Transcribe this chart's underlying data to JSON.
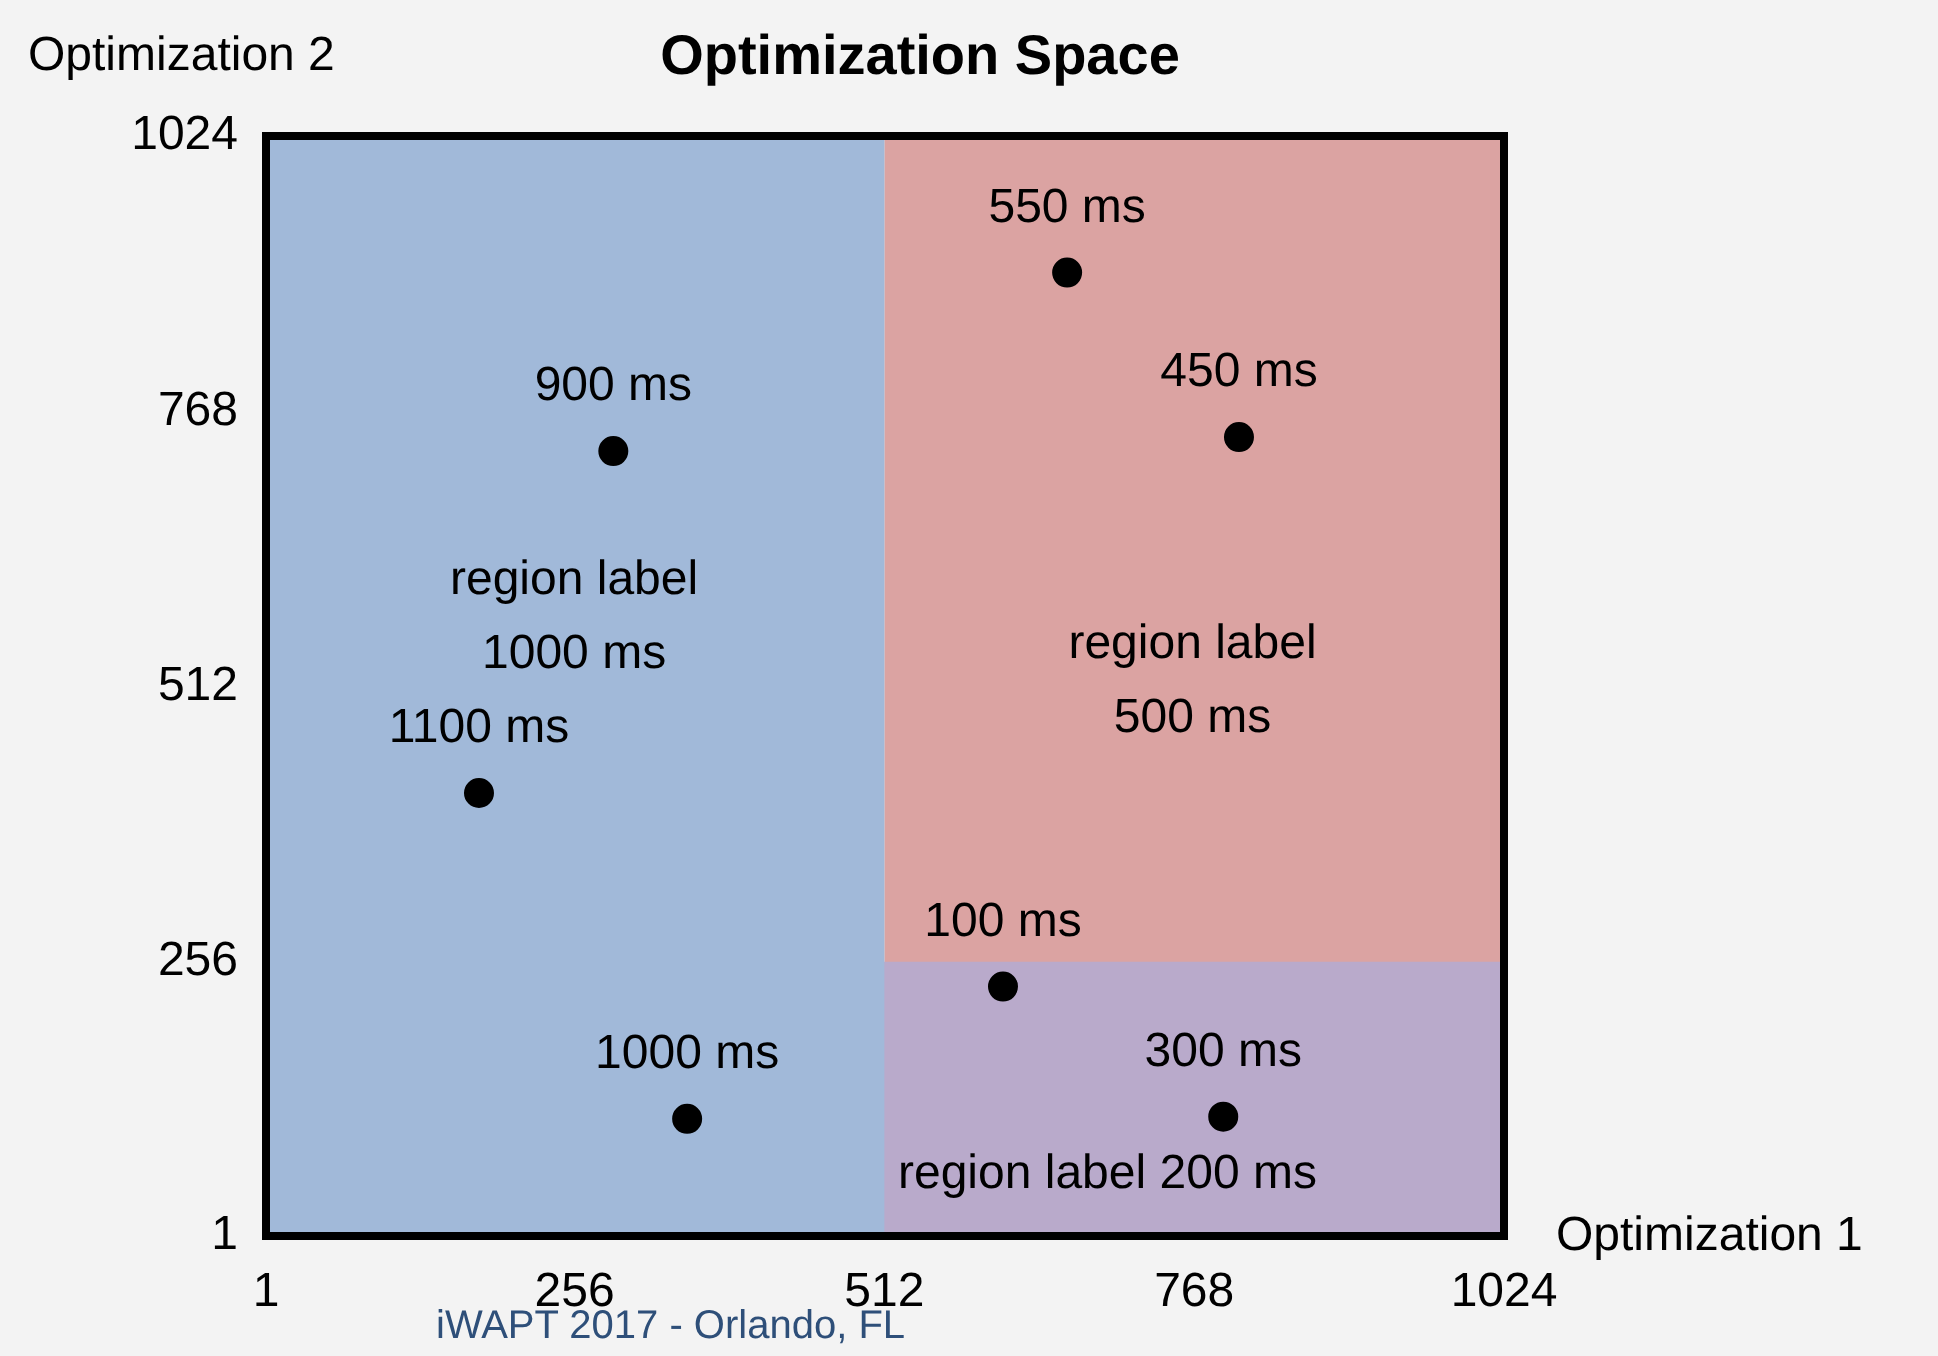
{
  "chart_data": {
    "type": "scatter",
    "title": "Optimization Space",
    "xlabel": "Optimization 1",
    "ylabel": "Optimization 2",
    "x": [
      288,
      177,
      349,
      663,
      805,
      610,
      792
    ],
    "series": [
      {
        "color": "#000000",
        "values": [
          731,
          413,
          110,
          897,
          744,
          233,
          112
        ]
      }
    ],
    "marker": "circle",
    "xlim": [
      1,
      1024
    ],
    "ylim": [
      1,
      1024
    ],
    "xticks": [
      1,
      256,
      512,
      768,
      1024
    ],
    "yticks": [
      1,
      256,
      512,
      768,
      1024
    ],
    "bands": [
      {
        "axis": "x",
        "from": 512,
        "to": 1024,
        "color": "#dba3a2",
        "label": "region label 500 ms"
      },
      {
        "axis": "y",
        "from": 1,
        "to": 256,
        "color": "#b9aacb",
        "label": "region label 200 ms"
      },
      {
        "axis": "x",
        "from": 1,
        "to": 512,
        "color": "#a1b9d9",
        "label": "region label 1000 ms"
      }
    ],
    "annotations": [
      {
        "text": "900 ms",
        "x": 288,
        "y": 731
      },
      {
        "text": "1100 ms",
        "x": 177,
        "y": 413
      },
      {
        "text": "1000 ms",
        "x": 349,
        "y": 110
      },
      {
        "text": "550 ms",
        "x": 663,
        "y": 897
      },
      {
        "text": "450 ms",
        "x": 805,
        "y": 744
      },
      {
        "text": "100 ms",
        "x": 610,
        "y": 233
      },
      {
        "text": "300 ms",
        "x": 792,
        "y": 112
      },
      "iWAPT 2017 - Orlando, FL"
    ]
  }
}
